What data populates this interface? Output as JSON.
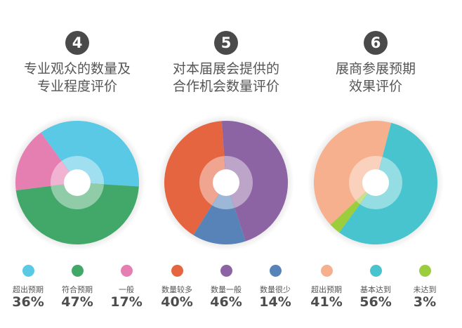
{
  "chart_data": [
    {
      "type": "pie",
      "number": "4",
      "title_lines": [
        "专业观众的数量及",
        "专业程度评价"
      ],
      "categories": [
        "超出预期",
        "符合预期",
        "一般"
      ],
      "values": [
        36,
        47,
        17
      ],
      "value_labels": [
        "36%",
        "47%",
        "17%"
      ],
      "colors": [
        "#5ac9e6",
        "#42a86a",
        "#e57fb2"
      ],
      "start_angle": 234
    },
    {
      "type": "pie",
      "number": "5",
      "title_lines": [
        "对本届展会提供的",
        "合作机会数量评价"
      ],
      "categories": [
        "数量较多",
        "数量一般",
        "数量很少"
      ],
      "values": [
        40,
        46,
        14
      ],
      "value_labels": [
        "40%",
        "46%",
        "14%"
      ],
      "colors": [
        "#e4653f",
        "#8c64a3",
        "#5783b8"
      ],
      "start_angle": 122
    },
    {
      "type": "pie",
      "number": "6",
      "title_lines": [
        "展商参展预期",
        "效果评价"
      ],
      "categories": [
        "超出预期",
        "基本达到",
        "未达到"
      ],
      "values": [
        41,
        56,
        3
      ],
      "value_labels": [
        "41%",
        "56%",
        "3%"
      ],
      "colors": [
        "#f6b08e",
        "#47c4cd",
        "#9ccd3c"
      ],
      "start_angle": 137
    }
  ]
}
